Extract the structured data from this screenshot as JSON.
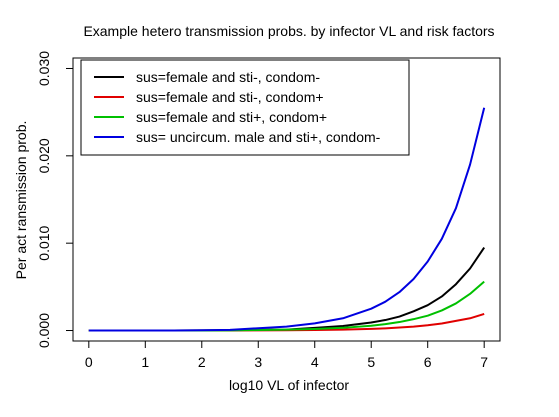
{
  "chart_data": {
    "type": "line",
    "title": "Example hetero transmission probs. by infector VL and risk factors",
    "xlabel": "log10 VL of infector",
    "ylabel": "Per act ransmission prob.",
    "xlim": [
      -0.28,
      7.28
    ],
    "ylim": [
      -0.0012,
      0.0312
    ],
    "xticks": [
      0,
      1,
      2,
      3,
      4,
      5,
      6,
      7
    ],
    "xtick_labels": [
      "0",
      "1",
      "2",
      "3",
      "4",
      "5",
      "6",
      "7"
    ],
    "yticks": [
      0.0,
      0.01,
      0.02,
      0.03
    ],
    "ytick_labels": [
      "0.000",
      "0.010",
      "0.020",
      "0.030"
    ],
    "grid": false,
    "legend_position": "top-left",
    "x": [
      0,
      0.5,
      1,
      1.5,
      2,
      2.5,
      3,
      3.5,
      4,
      4.5,
      5,
      5.25,
      5.5,
      5.75,
      6,
      6.25,
      6.5,
      6.75,
      7
    ],
    "series": [
      {
        "name": "sus=female and sti-, condom-",
        "color": "#000000",
        "values": [
          0.0,
          3e-07,
          1e-06,
          3.1e-06,
          9.6e-06,
          3e-05,
          9.5e-05,
          0.0001,
          0.0003,
          0.00052,
          0.00092,
          0.0012,
          0.0016,
          0.0022,
          0.0029,
          0.0039,
          0.0053,
          0.0071,
          0.0095
        ]
      },
      {
        "name": "sus=female and sti-, condom+",
        "color": "#e00000",
        "values": [
          0.0,
          1e-07,
          2e-07,
          6e-07,
          1.9e-06,
          6e-06,
          1.9e-05,
          3e-05,
          6e-05,
          0.0001,
          0.00019,
          0.00025,
          0.00034,
          0.00045,
          0.0006,
          0.0008,
          0.0011,
          0.0014,
          0.0019
        ]
      },
      {
        "name": "sus=female and sti+, condom+",
        "color": "#00c000",
        "values": [
          0.0,
          2e-07,
          6e-07,
          1.8e-06,
          5.7e-06,
          1.8e-05,
          5.7e-05,
          0.0001,
          0.00018,
          0.00031,
          0.00055,
          0.00073,
          0.00097,
          0.0013,
          0.0017,
          0.0023,
          0.0031,
          0.0042,
          0.0056
        ]
      },
      {
        "name": "sus= uncircum. male and sti+, condom-",
        "color": "#0000e0",
        "values": [
          0.0,
          8e-07,
          2.6e-06,
          8.3e-06,
          2.6e-05,
          8e-05,
          0.00026,
          0.00045,
          0.00082,
          0.0014,
          0.0025,
          0.0033,
          0.0044,
          0.0059,
          0.0079,
          0.0105,
          0.014,
          0.019,
          0.0255
        ]
      }
    ]
  }
}
